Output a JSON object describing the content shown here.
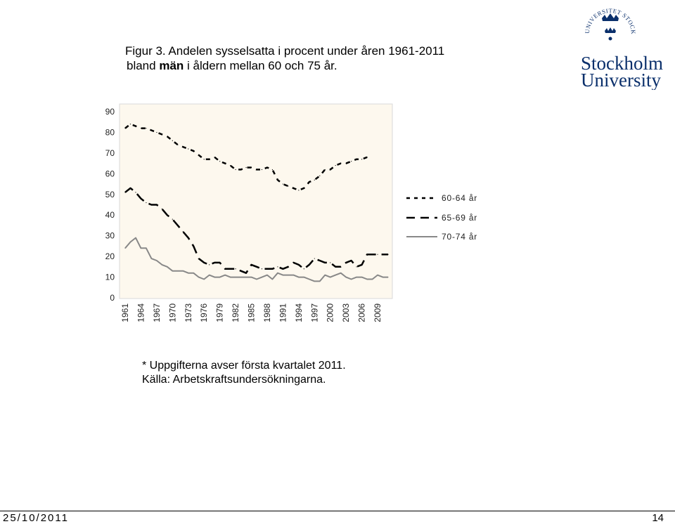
{
  "header": {
    "title_line1": "Figur 3. Andelen sysselsatta i procent under åren 1961-2011",
    "title_line2_pre": "bland ",
    "title_line2_bold": "män",
    "title_line2_post": " i åldern mellan 60 och 75 år."
  },
  "logo": {
    "name_line1": "Stockholm",
    "name_line2": "University",
    "seal_text": "UNIVERSITET STOCKHOLMS"
  },
  "chart_data": {
    "type": "line",
    "x_tick_labels": [
      "1961",
      "1964",
      "1967",
      "1970",
      "1973",
      "1976",
      "1979",
      "1982",
      "1985",
      "1988",
      "1991",
      "1994",
      "1997",
      "2000",
      "2003",
      "2006",
      "2009"
    ],
    "x": [
      1961,
      1962,
      1963,
      1964,
      1965,
      1966,
      1967,
      1968,
      1969,
      1970,
      1971,
      1972,
      1973,
      1974,
      1975,
      1976,
      1977,
      1978,
      1979,
      1980,
      1981,
      1982,
      1983,
      1984,
      1985,
      1986,
      1987,
      1988,
      1989,
      1990,
      1991,
      1992,
      1993,
      1994,
      1995,
      1996,
      1997,
      1998,
      1999,
      2000,
      2001,
      2002,
      2003,
      2004,
      2005,
      2006,
      2007,
      2008,
      2009,
      2010,
      2011
    ],
    "ylim": [
      0,
      90
    ],
    "y_ticks": [
      0,
      10,
      20,
      30,
      40,
      50,
      60,
      70,
      80,
      90
    ],
    "grid": false,
    "legend_position": "right",
    "series": [
      {
        "name": "60-64 år",
        "style": "short-dash",
        "color": "#000000",
        "values": [
          82,
          84,
          83,
          82,
          82,
          81,
          80,
          79,
          78,
          76,
          74,
          73,
          72,
          71,
          69,
          67,
          67,
          68,
          66,
          65,
          64,
          62,
          62,
          63,
          63,
          62,
          62,
          63,
          62,
          57,
          55,
          54,
          53,
          52,
          53,
          56,
          57,
          59,
          62,
          62,
          64,
          65,
          65,
          66,
          67,
          67,
          68,
          null,
          null,
          null,
          null
        ]
      },
      {
        "name": "65-69 år",
        "style": "long-dash",
        "color": "#000000",
        "values": [
          51,
          53,
          51,
          48,
          46,
          45,
          45,
          43,
          40,
          38,
          35,
          32,
          29,
          25,
          19,
          17,
          16,
          17,
          17,
          14,
          14,
          14,
          13,
          12,
          16,
          15,
          14,
          14,
          14,
          15,
          14,
          15,
          17,
          16,
          14,
          16,
          19,
          18,
          17,
          17,
          15,
          15,
          17,
          18,
          15,
          16,
          21,
          21,
          21,
          21,
          21
        ]
      },
      {
        "name": "70-74 år",
        "style": "solid",
        "color": "#888888",
        "values": [
          24,
          27,
          29,
          24,
          24,
          19,
          18,
          16,
          15,
          13,
          13,
          13,
          12,
          12,
          10,
          9,
          11,
          10,
          10,
          11,
          10,
          10,
          10,
          10,
          10,
          9,
          10,
          11,
          9,
          12,
          11,
          11,
          11,
          10,
          10,
          9,
          8,
          8,
          11,
          10,
          11,
          12,
          10,
          9,
          10,
          10,
          9,
          9,
          11,
          10,
          10
        ]
      }
    ]
  },
  "footnote": {
    "line1": "* Uppgifterna avser första kvartalet 2011.",
    "line2": "Källa: Arbetskraftsundersökningarna."
  },
  "footer": {
    "date": "25/10/2011",
    "page": "14"
  }
}
